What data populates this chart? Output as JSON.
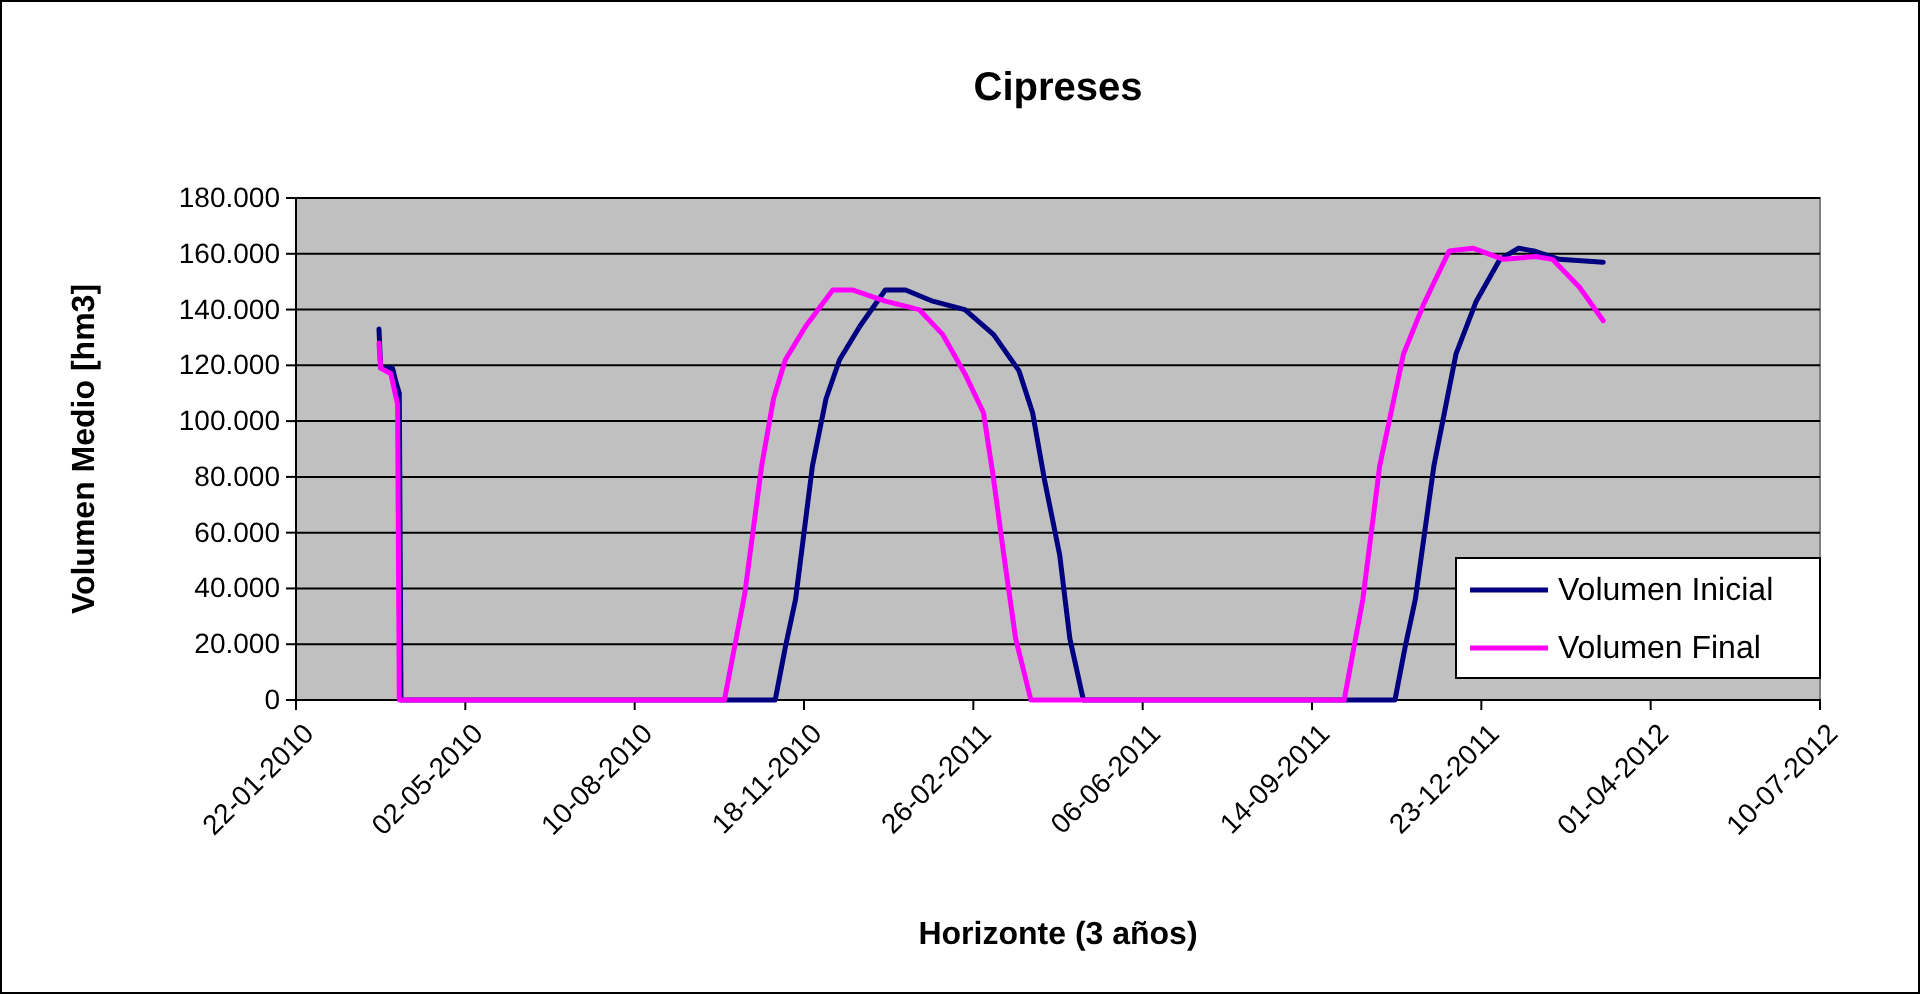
{
  "chart_data": {
    "type": "line",
    "title": "Cipreses",
    "xlabel": "Horizonte (3 años)",
    "ylabel": "Volumen Medio [hm3]",
    "xlim": [
      "2010-01-22",
      "2012-07-10"
    ],
    "xticks": [
      {
        "value": "2010-01-22",
        "label": "22-01-2010"
      },
      {
        "value": "2010-05-02",
        "label": "02-05-2010"
      },
      {
        "value": "2010-08-10",
        "label": "10-08-2010"
      },
      {
        "value": "2010-11-18",
        "label": "18-11-2010"
      },
      {
        "value": "2011-02-26",
        "label": "26-02-2011"
      },
      {
        "value": "2011-06-06",
        "label": "06-06-2011"
      },
      {
        "value": "2011-09-14",
        "label": "14-09-2011"
      },
      {
        "value": "2011-12-23",
        "label": "23-12-2011"
      },
      {
        "value": "2012-04-01",
        "label": "01-04-2012"
      },
      {
        "value": "2012-07-10",
        "label": "10-07-2012"
      }
    ],
    "ylim": [
      0,
      180000
    ],
    "yticks": [
      0,
      {
        "value": 20000,
        "label": "20.000"
      },
      {
        "value": 40000,
        "label": "40.000"
      },
      {
        "value": 60000,
        "label": "60.000"
      },
      {
        "value": 80000,
        "label": "80.000"
      },
      {
        "value": 100000,
        "label": "100.000"
      },
      {
        "value": 120000,
        "label": "120.000"
      },
      {
        "value": 140000,
        "label": "140.000"
      },
      {
        "value": 160000,
        "label": "160.000"
      },
      {
        "value": 180000,
        "label": "180.000"
      }
    ],
    "grid": "y",
    "legend": "bottom right",
    "marker": "none",
    "line_style": "solid",
    "series": [
      {
        "name": "Volumen Inicial",
        "color": "#000080",
        "x": [
          "2010-03-12",
          "2010-03-13",
          "2010-03-20",
          "2010-03-22",
          "2010-03-24",
          "2010-03-25",
          "2010-11-01",
          "2010-11-07",
          "2010-11-13",
          "2010-11-23",
          "2010-12-01",
          "2010-12-09",
          "2010-12-21",
          "2011-01-05",
          "2011-01-17",
          "2011-02-02",
          "2011-02-21",
          "2011-03-10",
          "2011-03-25",
          "2011-04-02",
          "2011-04-09",
          "2011-04-18",
          "2011-04-24",
          "2011-05-02",
          "2011-11-02",
          "2011-11-08",
          "2011-11-14",
          "2011-11-25",
          "2011-12-08",
          "2011-12-20",
          "2012-01-03",
          "2012-01-14",
          "2012-01-23",
          "2012-02-07",
          "2012-03-04"
        ],
        "values": [
          133000,
          119000,
          119000,
          114000,
          110000,
          0,
          0,
          19000,
          36000,
          84000,
          108000,
          122000,
          134000,
          147000,
          147000,
          143000,
          140000,
          131000,
          118000,
          103000,
          79000,
          52000,
          22000,
          0,
          0,
          19000,
          36000,
          84000,
          124000,
          143000,
          158000,
          162000,
          161000,
          158000,
          157000
        ]
      },
      {
        "name": "Volumen Final",
        "color": "#ff00ff",
        "x": [
          "2010-03-12",
          "2010-03-13",
          "2010-03-19",
          "2010-03-23",
          "2010-03-24",
          "2010-10-02",
          "2010-10-08",
          "2010-10-14",
          "2010-10-24",
          "2010-10-31",
          "2010-11-07",
          "2010-11-19",
          "2010-12-05",
          "2010-12-17",
          "2011-01-05",
          "2011-01-25",
          "2011-02-08",
          "2011-02-21",
          "2011-03-04",
          "2011-03-10",
          "2011-03-16",
          "2011-03-23",
          "2011-04-01",
          "2011-10-03",
          "2011-10-14",
          "2011-10-24",
          "2011-11-07",
          "2011-11-19",
          "2011-12-04",
          "2011-12-18",
          "2012-01-05",
          "2012-01-24",
          "2012-02-03",
          "2012-02-19",
          "2012-03-04"
        ],
        "values": [
          128000,
          119000,
          117000,
          106000,
          0,
          0,
          19000,
          38000,
          84000,
          108000,
          122000,
          134000,
          147000,
          147000,
          143000,
          140000,
          131000,
          117000,
          103000,
          79000,
          52000,
          22000,
          0,
          0,
          36000,
          84000,
          124000,
          142000,
          161000,
          162000,
          158000,
          159000,
          158000,
          148000,
          136000
        ]
      }
    ]
  }
}
